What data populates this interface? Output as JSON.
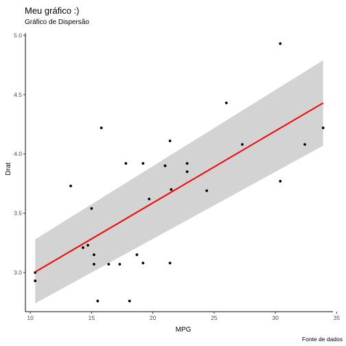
{
  "chart_data": {
    "type": "scatter",
    "title": "Meu gráfico :)",
    "subtitle": "Gráfico de Dispersão",
    "caption": "Fonte de dados",
    "xlabel": "MPG",
    "ylabel": "Drat",
    "xlim": [
      9.6,
      34.7
    ],
    "ylim": [
      2.67,
      5.02
    ],
    "x_ticks": [
      10,
      15,
      20,
      25,
      30,
      35
    ],
    "y_ticks": [
      3.0,
      3.5,
      4.0,
      4.5,
      5.0
    ],
    "y_tick_labels": [
      "3.0",
      "3.5",
      "4.0",
      "4.5",
      "5.0"
    ],
    "grid": false,
    "point_color": "#000000",
    "points": [
      {
        "x": 21.0,
        "y": 3.9
      },
      {
        "x": 21.0,
        "y": 3.9
      },
      {
        "x": 22.8,
        "y": 3.85
      },
      {
        "x": 21.4,
        "y": 3.08
      },
      {
        "x": 18.7,
        "y": 3.15
      },
      {
        "x": 18.1,
        "y": 2.76
      },
      {
        "x": 14.3,
        "y": 3.21
      },
      {
        "x": 24.4,
        "y": 3.69
      },
      {
        "x": 22.8,
        "y": 3.92
      },
      {
        "x": 19.2,
        "y": 3.92
      },
      {
        "x": 17.8,
        "y": 3.92
      },
      {
        "x": 16.4,
        "y": 3.07
      },
      {
        "x": 17.3,
        "y": 3.07
      },
      {
        "x": 15.2,
        "y": 3.07
      },
      {
        "x": 10.4,
        "y": 2.93
      },
      {
        "x": 10.4,
        "y": 3.0
      },
      {
        "x": 14.7,
        "y": 3.23
      },
      {
        "x": 32.4,
        "y": 4.08
      },
      {
        "x": 30.4,
        "y": 4.93
      },
      {
        "x": 33.9,
        "y": 4.22
      },
      {
        "x": 21.5,
        "y": 3.7
      },
      {
        "x": 15.5,
        "y": 2.76
      },
      {
        "x": 15.2,
        "y": 3.15
      },
      {
        "x": 13.3,
        "y": 3.73
      },
      {
        "x": 19.2,
        "y": 3.08
      },
      {
        "x": 27.3,
        "y": 4.08
      },
      {
        "x": 26.0,
        "y": 4.43
      },
      {
        "x": 30.4,
        "y": 3.77
      },
      {
        "x": 15.8,
        "y": 4.22
      },
      {
        "x": 19.7,
        "y": 3.62
      },
      {
        "x": 15.0,
        "y": 3.54
      },
      {
        "x": 21.4,
        "y": 4.11
      }
    ],
    "smooth": {
      "method": "linear",
      "color": "#ff0000",
      "band_color": "#d3d3d3",
      "x": [
        10.4,
        33.9
      ],
      "fit": [
        3.005,
        4.43
      ],
      "lower": [
        2.74,
        4.07
      ],
      "upper": [
        3.28,
        4.79
      ]
    }
  }
}
